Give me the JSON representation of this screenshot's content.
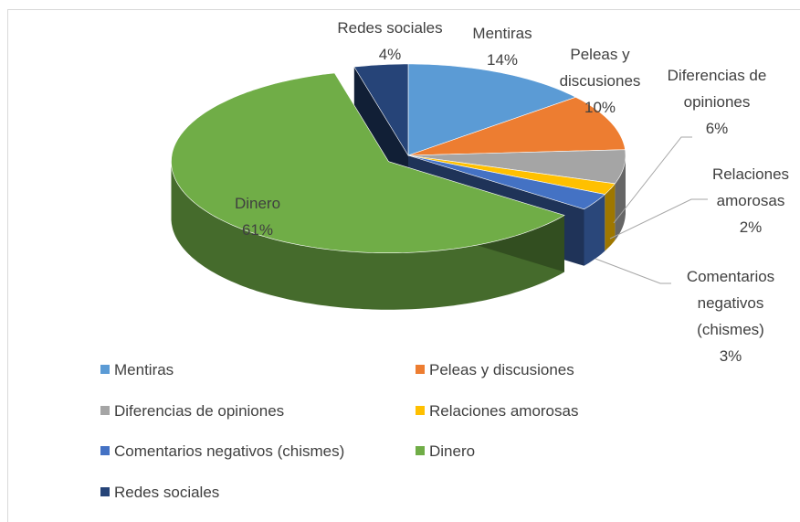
{
  "chart_data": {
    "type": "pie3d",
    "categories": [
      "Mentiras",
      "Peleas y discusiones",
      "Diferencias de opiniones",
      "Relaciones amorosas",
      "Comentarios negativos (chismes)",
      "Dinero",
      "Redes sociales"
    ],
    "values": [
      14,
      10,
      6,
      2,
      3,
      61,
      4
    ],
    "value_labels": [
      "14%",
      "10%",
      "6%",
      "2%",
      "3%",
      "61%",
      "4%"
    ],
    "colors": [
      "#5b9bd5",
      "#ed7d31",
      "#a5a5a5",
      "#ffc000",
      "#4472c4",
      "#70ad47",
      "#264478"
    ],
    "exploded": "Dinero",
    "legend": "bottom"
  }
}
